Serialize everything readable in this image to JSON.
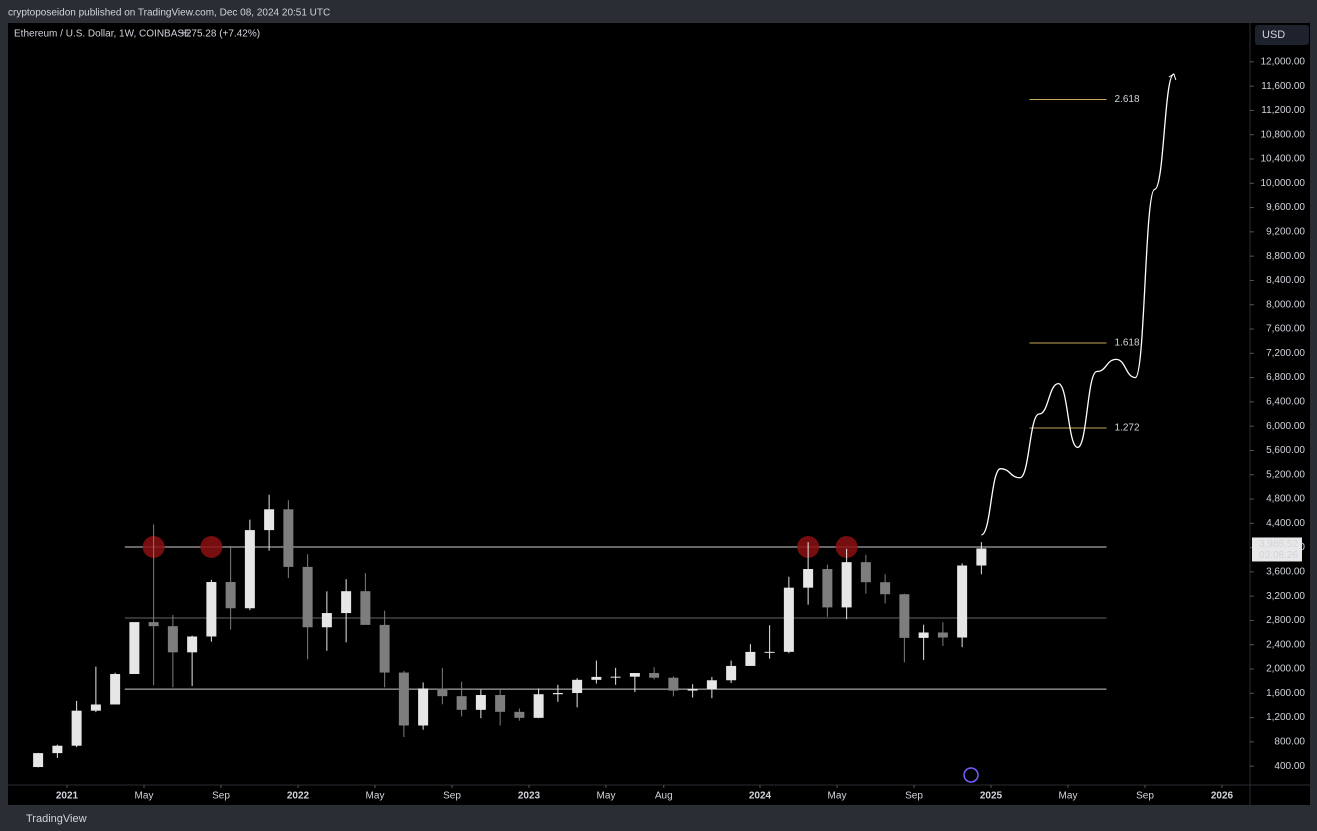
{
  "header": {
    "publisher": "cryptoposeidon published on TradingView.com, Dec 08, 2024 20:51 UTC",
    "footer": "TradingView"
  },
  "chart_data": {
    "type": "candlestick",
    "title": "Ethereum / U.S. Dollar, 1W, COINBASE",
    "change": "+275.28 (+7.42%)",
    "currency": "USD",
    "up_color": "#e6e6e6",
    "down_color": "#7d7d7d",
    "grid": false,
    "x": [
      "2020-11",
      "2020-12",
      "2021-01",
      "2021-02",
      "2021-03",
      "2021-04",
      "2021-05",
      "2021-06",
      "2021-07",
      "2021-08",
      "2021-09",
      "2021-10",
      "2021-11",
      "2021-12",
      "2022-01",
      "2022-02",
      "2022-03",
      "2022-04",
      "2022-05",
      "2022-06",
      "2022-07",
      "2022-08",
      "2022-09",
      "2022-10",
      "2022-11",
      "2022-12",
      "2023-01",
      "2023-02",
      "2023-03",
      "2023-04",
      "2023-05",
      "2023-06",
      "2023-07",
      "2023-08",
      "2023-09",
      "2023-10",
      "2023-11",
      "2023-12",
      "2024-01",
      "2024-02",
      "2024-03",
      "2024-04",
      "2024-05",
      "2024-06",
      "2024-07",
      "2024-08",
      "2024-09",
      "2024-10",
      "2024-11",
      "2024-12"
    ],
    "open": [
      386,
      615,
      737,
      1314,
      1416,
      1918,
      2773,
      2706,
      2275,
      2536,
      3433,
      3001,
      4288,
      4631,
      3682,
      2688,
      2922,
      3282,
      2727,
      1942,
      1070,
      1680,
      1553,
      1328,
      1572,
      1295,
      1196,
      1585,
      1605,
      1822,
      1870,
      1874,
      1934,
      1857,
      1645,
      1671,
      1815,
      2051,
      2282,
      2283,
      3340,
      3647,
      3015,
      3760,
      3430,
      3232,
      2513,
      2602,
      2519,
      3705
    ],
    "high": [
      620,
      755,
      1475,
      2040,
      1940,
      2750,
      4380,
      2890,
      2550,
      3470,
      4030,
      4460,
      4870,
      4780,
      3890,
      3280,
      3480,
      3580,
      2960,
      1970,
      1780,
      2020,
      1790,
      1660,
      1670,
      1350,
      1680,
      1740,
      1850,
      2140,
      2020,
      1930,
      2030,
      1880,
      1750,
      1870,
      2140,
      2410,
      2720,
      3520,
      4090,
      3720,
      3980,
      3880,
      3560,
      3240,
      2730,
      2770,
      3740,
      4090
    ],
    "low": [
      380,
      535,
      714,
      1290,
      1540,
      1950,
      1730,
      1700,
      1720,
      2450,
      2650,
      2970,
      3950,
      3500,
      2160,
      2300,
      2440,
      2790,
      1700,
      880,
      1000,
      1420,
      1220,
      1190,
      1070,
      1150,
      1190,
      1460,
      1370,
      1760,
      1740,
      1620,
      1830,
      1550,
      1530,
      1520,
      1770,
      2050,
      2170,
      2260,
      3060,
      2860,
      2820,
      3240,
      3080,
      2110,
      2150,
      2380,
      2360,
      3560
    ],
    "close": [
      615,
      737,
      1314,
      1416,
      1918,
      2773,
      2706,
      2275,
      2536,
      3433,
      3001,
      4288,
      4631,
      3682,
      2688,
      2922,
      3282,
      2727,
      1942,
      1070,
      1680,
      1553,
      1328,
      1572,
      1295,
      1196,
      1585,
      1605,
      1822,
      1870,
      1874,
      1934,
      1857,
      1645,
      1671,
      1815,
      2051,
      2282,
      2283,
      3340,
      3647,
      3015,
      3760,
      3430,
      3232,
      2513,
      2602,
      2519,
      3705,
      3985.52
    ],
    "last_label": "3,985.52",
    "countdown": "03:08:26",
    "levels": [
      {
        "value": 4010,
        "x": [
          "2021-04",
          "2025-07"
        ]
      },
      {
        "value": 2840,
        "x": [
          "2021-04",
          "2025-07"
        ]
      },
      {
        "value": 1670,
        "x": [
          "2021-04",
          "2025-07"
        ]
      }
    ],
    "highlights": {
      "x": [
        "2021-05",
        "2021-08",
        "2024-03",
        "2024-05"
      ],
      "values": [
        4010,
        4010,
        4010,
        4010
      ]
    },
    "fib": [
      {
        "label": "2.618",
        "value": 11380
      },
      {
        "label": "1.618",
        "value": 7370
      },
      {
        "label": "1.272",
        "value": 5970
      }
    ],
    "fib_x": [
      "2025-03",
      "2025-07"
    ],
    "fib_color": "#c8a85a",
    "projection": {
      "x": [
        "2024-12",
        "2025-01",
        "2025-02",
        "2025-03",
        "2025-04",
        "2025-05",
        "2025-06",
        "2025-07",
        "2025-08",
        "2025-09",
        "2025-10"
      ],
      "values": [
        4210,
        5300,
        5150,
        6200,
        6700,
        5650,
        6900,
        7100,
        6800,
        9900,
        11800
      ]
    },
    "ylim": [
      90,
      12640
    ],
    "yticks": [
      {
        "value": 400,
        "label": "400.00"
      },
      {
        "value": 800,
        "label": "800.00"
      },
      {
        "value": 1200,
        "label": "1,200.00"
      },
      {
        "value": 1600,
        "label": "1,600.00"
      },
      {
        "value": 2000,
        "label": "2,000.00"
      },
      {
        "value": 2400,
        "label": "2,400.00"
      },
      {
        "value": 2800,
        "label": "2,800.00"
      },
      {
        "value": 3200,
        "label": "3,200.00"
      },
      {
        "value": 3600,
        "label": "3,600.00"
      },
      {
        "value": 4000,
        "label": "4,000.00"
      },
      {
        "value": 4400,
        "label": "4,400.00"
      },
      {
        "value": 4800,
        "label": "4,800.00"
      },
      {
        "value": 5200,
        "label": "5,200.00"
      },
      {
        "value": 5600,
        "label": "5,600.00"
      },
      {
        "value": 6000,
        "label": "6,000.00"
      },
      {
        "value": 6400,
        "label": "6,400.00"
      },
      {
        "value": 6800,
        "label": "6,800.00"
      },
      {
        "value": 7200,
        "label": "7,200.00"
      },
      {
        "value": 7600,
        "label": "7,600.00"
      },
      {
        "value": 8000,
        "label": "8,000.00"
      },
      {
        "value": 8400,
        "label": "8,400.00"
      },
      {
        "value": 8800,
        "label": "8,800.00"
      },
      {
        "value": 9200,
        "label": "9,200.00"
      },
      {
        "value": 9600,
        "label": "9,600.00"
      },
      {
        "value": 10000,
        "label": "10,000.00"
      },
      {
        "value": 10400,
        "label": "10,400.00"
      },
      {
        "value": 10800,
        "label": "10,800.00"
      },
      {
        "value": 11200,
        "label": "11,200.00"
      },
      {
        "value": 11600,
        "label": "11,600.00"
      },
      {
        "value": 12000,
        "label": "12,000.00"
      }
    ],
    "xticks": [
      {
        "value": "2021-01",
        "label": "2021"
      },
      {
        "value": "2021-05",
        "label": "May"
      },
      {
        "value": "2021-09",
        "label": "Sep"
      },
      {
        "value": "2022-01",
        "label": "2022"
      },
      {
        "value": "2022-05",
        "label": "May"
      },
      {
        "value": "2022-09",
        "label": "Sep"
      },
      {
        "value": "2023-01",
        "label": "2023"
      },
      {
        "value": "2023-05",
        "label": "May"
      },
      {
        "value": "2023-08",
        "label": "Aug"
      },
      {
        "value": "2024-01",
        "label": "2024"
      },
      {
        "value": "2024-05",
        "label": "May"
      },
      {
        "value": "2024-09",
        "label": "Sep"
      },
      {
        "value": "2025-01",
        "label": "2025"
      },
      {
        "value": "2025-05",
        "label": "May"
      },
      {
        "value": "2025-09",
        "label": "Sep"
      },
      {
        "value": "2026-01",
        "label": "2026"
      }
    ]
  }
}
